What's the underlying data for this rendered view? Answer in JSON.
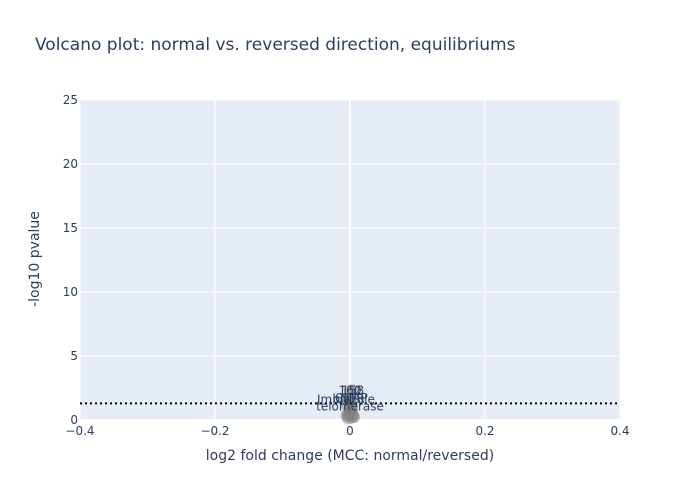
{
  "chart_data": {
    "type": "scatter",
    "title": "Volcano plot: normal vs. reversed direction, equilibriums",
    "xlabel": "log2 fold change (MCC: normal/reversed)",
    "ylabel": "-log10 pvalue",
    "xlim": [
      -0.4,
      0.4
    ],
    "ylim": [
      0,
      25
    ],
    "x_ticks": [
      -0.4,
      -0.2,
      0,
      0.2,
      0.4
    ],
    "x_tick_labels": [
      "−0.4",
      "−0.2",
      "0",
      "0.2",
      "0.4"
    ],
    "y_ticks": [
      0,
      5,
      10,
      15,
      20,
      25
    ],
    "y_tick_labels": [
      "0",
      "5",
      "10",
      "15",
      "20",
      "25"
    ],
    "grid": true,
    "plot_background": "#e5ecf6",
    "grid_color": "#ffffff",
    "threshold_line": {
      "y": 1.3,
      "style": "dotted",
      "color": "#000000"
    },
    "points": [
      {
        "x": -0.003,
        "y": 0.12,
        "label": ""
      },
      {
        "x": 0.002,
        "y": 0.18,
        "label": ""
      },
      {
        "x": 0.005,
        "y": 0.28,
        "label": ""
      },
      {
        "x": -0.002,
        "y": 0.35,
        "label": ""
      },
      {
        "x": 0.004,
        "y": 0.42,
        "label": ""
      },
      {
        "x": -0.004,
        "y": 0.52,
        "label": ""
      },
      {
        "x": 0.001,
        "y": 0.62,
        "label": ""
      },
      {
        "x": 0.006,
        "y": 0.22,
        "label": ""
      },
      {
        "x": -0.005,
        "y": 0.3,
        "label": ""
      },
      {
        "x": 0.003,
        "y": 0.75,
        "label": ""
      },
      {
        "x": -0.001,
        "y": 0.85,
        "label": ""
      },
      {
        "x": 0.002,
        "y": 0.95,
        "label": ""
      },
      {
        "x": 0.0,
        "y": 2.3,
        "label": "160"
      },
      {
        "x": 0.004,
        "y": 2.3,
        "label": "158"
      },
      {
        "x": -0.006,
        "y": 1.6,
        "label": "Imidazole"
      },
      {
        "x": -0.002,
        "y": 1.65,
        "label": "bNTR"
      },
      {
        "x": 0.002,
        "y": 1.7,
        "label": "CHAP"
      },
      {
        "x": 0.001,
        "y": 1.35,
        "label": ""
      },
      {
        "x": -0.005,
        "y": 1.2,
        "label": ""
      },
      {
        "x": 0.003,
        "y": 1.15,
        "label": ""
      },
      {
        "x": 0.0,
        "y": 1.05,
        "label": "telomerase"
      }
    ]
  }
}
